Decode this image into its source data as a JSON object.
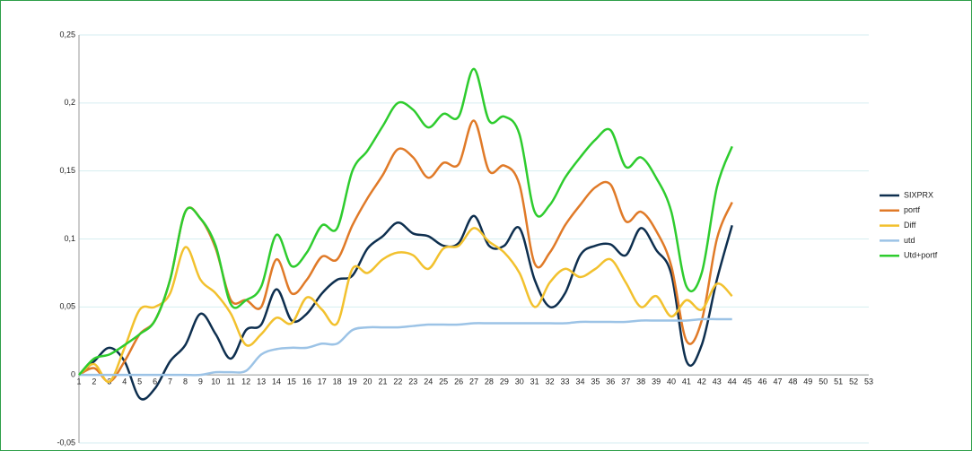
{
  "chart_data": {
    "type": "line",
    "categories": [
      1,
      2,
      3,
      4,
      5,
      6,
      7,
      8,
      9,
      10,
      11,
      12,
      13,
      14,
      15,
      16,
      17,
      18,
      19,
      20,
      21,
      22,
      23,
      24,
      25,
      26,
      27,
      28,
      29,
      30,
      31,
      32,
      33,
      34,
      35,
      36,
      37,
      38,
      39,
      40,
      41,
      42,
      43,
      44,
      45,
      46,
      47,
      48,
      49,
      50,
      51,
      52,
      53
    ],
    "ylim": [
      -0.05,
      0.25
    ],
    "yticks": [
      {
        "value": -0.05,
        "label": "-0,05"
      },
      0,
      {
        "value": 0.05,
        "label": "0,05"
      },
      {
        "value": 0.1,
        "label": "0,1"
      },
      {
        "value": 0.15,
        "label": "0,15"
      },
      {
        "value": 0.2,
        "label": "0,2"
      },
      {
        "value": 0.25,
        "label": "0,25"
      }
    ],
    "grid": true,
    "smooth": true,
    "legend": "right",
    "series": [
      {
        "name": "SIXPRX",
        "color": "#0e2f4f",
        "values": [
          0,
          0.01,
          0.02,
          0.01,
          -0.017,
          -0.01,
          0.01,
          0.022,
          0.045,
          0.03,
          0.012,
          0.033,
          0.037,
          0.063,
          0.04,
          0.045,
          0.06,
          0.07,
          0.073,
          0.093,
          0.102,
          0.112,
          0.104,
          0.102,
          0.095,
          0.097,
          0.117,
          0.095,
          0.095,
          0.108,
          0.07,
          0.05,
          0.06,
          0.088,
          0.095,
          0.096,
          0.088,
          0.108,
          0.092,
          0.074,
          0.01,
          0.022,
          0.07,
          0.11,
          null,
          null,
          null,
          null,
          null,
          null,
          null,
          null,
          null
        ]
      },
      {
        "name": "portf",
        "color": "#e07a28",
        "values": [
          0,
          0.005,
          -0.005,
          0.01,
          0.03,
          0.04,
          0.07,
          0.12,
          0.115,
          0.093,
          0.055,
          0.055,
          0.05,
          0.085,
          0.06,
          0.07,
          0.087,
          0.085,
          0.11,
          0.13,
          0.147,
          0.166,
          0.16,
          0.145,
          0.156,
          0.155,
          0.187,
          0.15,
          0.154,
          0.14,
          0.082,
          0.09,
          0.11,
          0.125,
          0.138,
          0.14,
          0.113,
          0.12,
          0.106,
          0.08,
          0.025,
          0.04,
          0.1,
          0.127,
          null,
          null,
          null,
          null,
          null,
          null,
          null,
          null,
          null
        ]
      },
      {
        "name": "Diff",
        "color": "#f2c12e",
        "values": [
          0,
          0.008,
          -0.005,
          0.02,
          0.048,
          0.05,
          0.06,
          0.094,
          0.07,
          0.06,
          0.045,
          0.022,
          0.03,
          0.042,
          0.038,
          0.057,
          0.048,
          0.038,
          0.078,
          0.075,
          0.085,
          0.09,
          0.088,
          0.078,
          0.093,
          0.095,
          0.108,
          0.098,
          0.09,
          0.075,
          0.05,
          0.068,
          0.078,
          0.072,
          0.078,
          0.085,
          0.068,
          0.05,
          0.058,
          0.043,
          0.055,
          0.048,
          0.067,
          0.058,
          null,
          null,
          null,
          null,
          null,
          null,
          null,
          null,
          null
        ]
      },
      {
        "name": "utd",
        "color": "#9cc3e6",
        "values": [
          0,
          0,
          0,
          0,
          0,
          0,
          0,
          0,
          0,
          0.002,
          0.002,
          0.003,
          0.015,
          0.019,
          0.02,
          0.02,
          0.023,
          0.023,
          0.033,
          0.035,
          0.035,
          0.035,
          0.036,
          0.037,
          0.037,
          0.037,
          0.038,
          0.038,
          0.038,
          0.038,
          0.038,
          0.038,
          0.038,
          0.039,
          0.039,
          0.039,
          0.039,
          0.04,
          0.04,
          0.04,
          0.04,
          0.041,
          0.041,
          0.041,
          null,
          null,
          null,
          null,
          null,
          null,
          null,
          null,
          null
        ]
      },
      {
        "name": "Utd+portf",
        "color": "#2ecc2e",
        "values": [
          0,
          0.012,
          0.015,
          0.022,
          0.03,
          0.04,
          0.07,
          0.12,
          0.115,
          0.095,
          0.052,
          0.055,
          0.065,
          0.103,
          0.08,
          0.09,
          0.11,
          0.108,
          0.15,
          0.165,
          0.183,
          0.2,
          0.195,
          0.182,
          0.192,
          0.19,
          0.225,
          0.187,
          0.19,
          0.177,
          0.12,
          0.125,
          0.145,
          0.16,
          0.173,
          0.18,
          0.153,
          0.16,
          0.145,
          0.12,
          0.065,
          0.075,
          0.138,
          0.168,
          null,
          null,
          null,
          null,
          null,
          null,
          null,
          null,
          null
        ]
      }
    ]
  }
}
